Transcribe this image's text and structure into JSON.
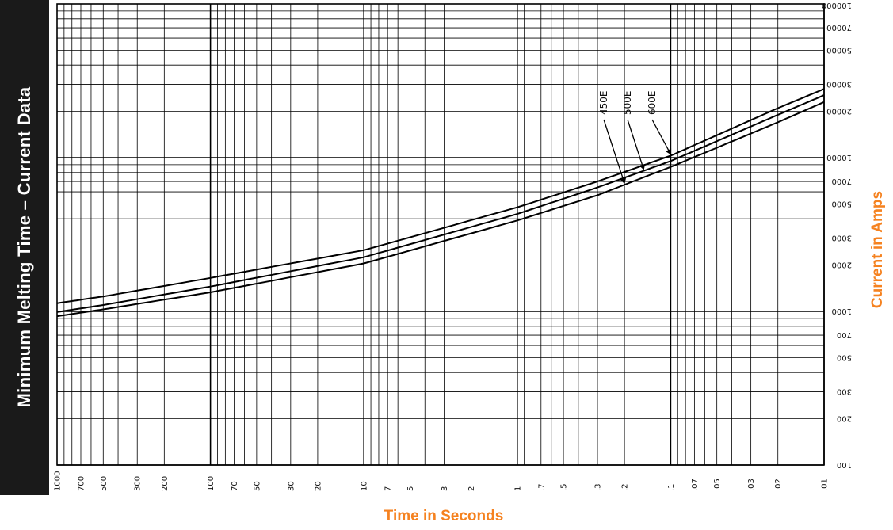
{
  "banner": {
    "title": "Minimum Melting Time – Current Data"
  },
  "chart_data": {
    "type": "line",
    "title": "",
    "xlabel": "Time in Seconds",
    "ylabel": "Current in Amps",
    "x_scale": "log",
    "y_scale": "log",
    "x_direction": "descending",
    "xlim": [
      1000,
      0.01
    ],
    "ylim": [
      100,
      100000
    ],
    "grid": true,
    "legend": "inline-labels",
    "x_ticks": [
      {
        "value": 1000,
        "label": "1000"
      },
      {
        "value": 700,
        "label": "700"
      },
      {
        "value": 500,
        "label": "500"
      },
      {
        "value": 300,
        "label": "300"
      },
      {
        "value": 200,
        "label": "200"
      },
      {
        "value": 100,
        "label": "100"
      },
      {
        "value": 70,
        "label": "70"
      },
      {
        "value": 50,
        "label": "50"
      },
      {
        "value": 30,
        "label": "30"
      },
      {
        "value": 20,
        "label": "20"
      },
      {
        "value": 10,
        "label": "10"
      },
      {
        "value": 7,
        "label": "7"
      },
      {
        "value": 5,
        "label": "5"
      },
      {
        "value": 3,
        "label": "3"
      },
      {
        "value": 2,
        "label": "2"
      },
      {
        "value": 1,
        "label": "1"
      },
      {
        "value": 0.7,
        "label": ".7"
      },
      {
        "value": 0.5,
        "label": ".5"
      },
      {
        "value": 0.3,
        "label": ".3"
      },
      {
        "value": 0.2,
        "label": ".2"
      },
      {
        "value": 0.1,
        "label": ".1"
      },
      {
        "value": 0.07,
        "label": ".07"
      },
      {
        "value": 0.05,
        "label": ".05"
      },
      {
        "value": 0.03,
        "label": ".03"
      },
      {
        "value": 0.02,
        "label": ".02"
      },
      {
        "value": 0.01,
        "label": ".01"
      }
    ],
    "y_ticks": [
      {
        "value": 100,
        "label": "100"
      },
      {
        "value": 200,
        "label": "200"
      },
      {
        "value": 300,
        "label": "300"
      },
      {
        "value": 500,
        "label": "500"
      },
      {
        "value": 700,
        "label": "700"
      },
      {
        "value": 1000,
        "label": "1000"
      },
      {
        "value": 2000,
        "label": "2000"
      },
      {
        "value": 3000,
        "label": "3000"
      },
      {
        "value": 5000,
        "label": "5000"
      },
      {
        "value": 7000,
        "label": "7000"
      },
      {
        "value": 10000,
        "label": "10000"
      },
      {
        "value": 20000,
        "label": "20000"
      },
      {
        "value": 30000,
        "label": "30000"
      },
      {
        "value": 50000,
        "label": "50000"
      },
      {
        "value": 70000,
        "label": "70000"
      },
      {
        "value": 100000,
        "label": "100000"
      }
    ],
    "series": [
      {
        "name": "450E",
        "points": [
          {
            "x": 1000,
            "y": 930
          },
          {
            "x": 500,
            "y": 1030
          },
          {
            "x": 100,
            "y": 1330
          },
          {
            "x": 10,
            "y": 2050
          },
          {
            "x": 1,
            "y": 3900
          },
          {
            "x": 0.3,
            "y": 5700
          },
          {
            "x": 0.1,
            "y": 8700
          },
          {
            "x": 0.05,
            "y": 11600
          },
          {
            "x": 0.02,
            "y": 17000
          },
          {
            "x": 0.01,
            "y": 23000
          }
        ]
      },
      {
        "name": "500E",
        "points": [
          {
            "x": 1000,
            "y": 990
          },
          {
            "x": 500,
            "y": 1100
          },
          {
            "x": 100,
            "y": 1450
          },
          {
            "x": 10,
            "y": 2250
          },
          {
            "x": 1,
            "y": 4300
          },
          {
            "x": 0.3,
            "y": 6400
          },
          {
            "x": 0.1,
            "y": 9500
          },
          {
            "x": 0.05,
            "y": 12800
          },
          {
            "x": 0.02,
            "y": 19000
          },
          {
            "x": 0.01,
            "y": 25500
          }
        ]
      },
      {
        "name": "600E",
        "points": [
          {
            "x": 1000,
            "y": 1130
          },
          {
            "x": 500,
            "y": 1250
          },
          {
            "x": 100,
            "y": 1650
          },
          {
            "x": 10,
            "y": 2500
          },
          {
            "x": 1,
            "y": 4750
          },
          {
            "x": 0.3,
            "y": 7000
          },
          {
            "x": 0.1,
            "y": 10300
          },
          {
            "x": 0.05,
            "y": 14000
          },
          {
            "x": 0.02,
            "y": 21000
          },
          {
            "x": 0.01,
            "y": 28000
          }
        ]
      }
    ]
  }
}
